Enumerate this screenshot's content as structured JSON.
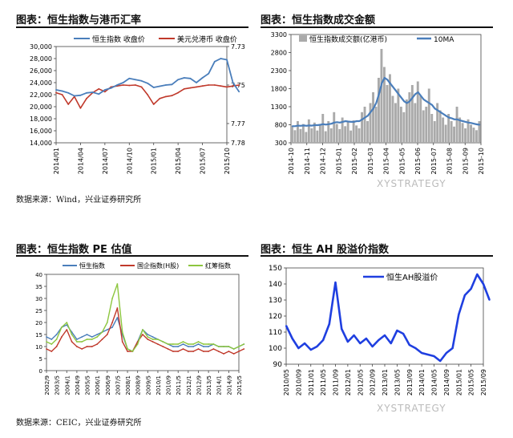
{
  "panels": {
    "p1": {
      "title": "图表：恒生指数与港币汇率"
    },
    "p2": {
      "title": "图表：恒生指数成交金额"
    },
    "p3": {
      "title": "图表：恒生指数 PE 估值"
    },
    "p4": {
      "title": "图表：恒生 AH 股溢价指数"
    }
  },
  "sources": {
    "top": "数据来源：Wind，兴业证券研究所",
    "bottom": "数据来源：CEIC，兴业证券研究所"
  },
  "watermark": "XYSTRATEGY",
  "chart_data": [
    {
      "id": "p1",
      "type": "line",
      "title": "",
      "x_ticks": [
        "2014/01",
        "2014/04",
        "2014/07",
        "2014/10",
        "2015/01",
        "2015/04",
        "2015/07",
        "2015/10"
      ],
      "x": [
        0,
        0.25,
        0.5,
        0.75,
        1,
        1.25,
        1.5,
        1.75,
        2,
        2.25,
        2.5,
        2.75,
        3,
        3.25,
        3.5,
        3.75,
        4,
        4.25,
        4.5,
        4.75,
        5,
        5.25,
        5.5,
        5.75,
        6,
        6.25,
        6.5,
        6.75,
        7,
        7.25,
        7.5
      ],
      "ylim_left": [
        14000,
        30000
      ],
      "y_ticks_left": [
        "14,000",
        "16,000",
        "18,000",
        "20,000",
        "22,000",
        "24,000",
        "26,000",
        "28,000",
        "30,000"
      ],
      "ylim_right": [
        7.78,
        7.73
      ],
      "y_ticks_right": [
        "7.73",
        "7.75",
        "7.77",
        "7.78"
      ],
      "series": [
        {
          "name": "恒生指数 收盘价",
          "axis": "left",
          "color": "#4a7ebb",
          "values": [
            22800,
            22600,
            22300,
            21800,
            21900,
            22300,
            22400,
            22100,
            22800,
            23100,
            23600,
            24000,
            24700,
            24500,
            24300,
            23900,
            23200,
            23400,
            23600,
            23700,
            24500,
            24800,
            24700,
            24000,
            24800,
            25500,
            27500,
            28000,
            27800,
            24000,
            22500
          ]
        },
        {
          "name": "美元兑港币 收盘价",
          "axis": "right",
          "color": "#c0392b",
          "values": [
            7.754,
            7.755,
            7.76,
            7.756,
            7.762,
            7.757,
            7.754,
            7.752,
            7.7535,
            7.751,
            7.7505,
            7.75,
            7.7502,
            7.75,
            7.751,
            7.755,
            7.76,
            7.757,
            7.756,
            7.7555,
            7.754,
            7.752,
            7.7515,
            7.751,
            7.7505,
            7.75,
            7.75,
            7.7505,
            7.751,
            7.7505,
            7.75
          ]
        }
      ]
    },
    {
      "id": "p2",
      "type": "bar",
      "title": "",
      "x_ticks": [
        "2014-10",
        "2014-11",
        "2014-12",
        "2015-01",
        "2015-02",
        "2015-03",
        "2015-04",
        "2015-05",
        "2015-06",
        "2015-07",
        "2015-08",
        "2015-09",
        "2015-10"
      ],
      "ylim": [
        300,
        3300
      ],
      "y_ticks": [
        "300",
        "800",
        "1300",
        "1800",
        "2300",
        "2800",
        "3300"
      ],
      "series": [
        {
          "name": "恒生指数成交额(亿港币)",
          "color": "#aaaaaa",
          "values": [
            750,
            650,
            900,
            680,
            820,
            600,
            950,
            700,
            860,
            640,
            780,
            1100,
            620,
            900,
            700,
            1150,
            820,
            680,
            1000,
            760,
            880,
            640,
            920,
            780,
            700,
            1150,
            1300,
            900,
            1400,
            1700,
            1300,
            2100,
            2900,
            2400,
            1900,
            2200,
            1600,
            1400,
            1800,
            1300,
            1150,
            1500,
            1700,
            1900,
            1400,
            2000,
            1600,
            1200,
            1300,
            1800,
            1100,
            900,
            1400,
            1200,
            1000,
            800,
            1100,
            900,
            750,
            1300,
            1000,
            850,
            700,
            950,
            800,
            720,
            650,
            900
          ]
        },
        {
          "name": "10MA",
          "color": "#4a7ebb",
          "values": [
            760,
            760,
            775,
            770,
            780,
            770,
            780,
            775,
            790,
            790,
            800,
            815,
            805,
            815,
            830,
            860,
            870,
            860,
            880,
            900,
            890,
            880,
            880,
            900,
            900,
            950,
            1000,
            1050,
            1150,
            1250,
            1400,
            1650,
            1950,
            2100,
            2050,
            1950,
            1850,
            1750,
            1650,
            1550,
            1450,
            1400,
            1450,
            1550,
            1650,
            1700,
            1600,
            1500,
            1450,
            1400,
            1350,
            1250,
            1200,
            1150,
            1100,
            1050,
            1000,
            980,
            950,
            950,
            920,
            900,
            880,
            860,
            850,
            830,
            810,
            800
          ]
        }
      ]
    },
    {
      "id": "p3",
      "type": "line",
      "title": "",
      "x_ticks": [
        "2002/9",
        "2003/5",
        "2004/1",
        "2004/9",
        "2005/5",
        "2006/1",
        "2006/9",
        "2007/5",
        "2008/1",
        "2008/9",
        "2009/5",
        "2010/1",
        "2010/9",
        "2011/5",
        "2012/1",
        "2012/9",
        "2013/5",
        "2014/1",
        "2014/9",
        "2015/5"
      ],
      "x": [
        0,
        0.5,
        1,
        1.5,
        2,
        2.5,
        3,
        3.5,
        4,
        4.5,
        5,
        5.5,
        6,
        6.5,
        7,
        7.5,
        8,
        8.5,
        9,
        9.5,
        10,
        10.5,
        11,
        11.5,
        12,
        12.5,
        13,
        13.5,
        14,
        14.5,
        15,
        15.5,
        16,
        16.5,
        17,
        17.5,
        18,
        18.5,
        19,
        19.5
      ],
      "ylim": [
        0,
        40
      ],
      "y_ticks": [
        "0",
        "5",
        "10",
        "15",
        "20",
        "25",
        "30",
        "35",
        "40"
      ],
      "series": [
        {
          "name": "恒生指数",
          "color": "#4a7ebb",
          "values": [
            14,
            13,
            15,
            18,
            19,
            16,
            13,
            14,
            15,
            14,
            15,
            16,
            17,
            18,
            22,
            15,
            9,
            8,
            12,
            17,
            15,
            14,
            13,
            12,
            11,
            10,
            10,
            11,
            10,
            10,
            11,
            10,
            10,
            11,
            10,
            10,
            10,
            9,
            10,
            11
          ]
        },
        {
          "name": "国企指数(H股)",
          "color": "#c0392b",
          "values": [
            9,
            8,
            10,
            14,
            17,
            12,
            10,
            9,
            10,
            10,
            11,
            13,
            15,
            20,
            26,
            12,
            8,
            8,
            12,
            15,
            13,
            12,
            11,
            10,
            9,
            8,
            8,
            9,
            8,
            8,
            9,
            8,
            8,
            9,
            8,
            7,
            8,
            7,
            8,
            9
          ]
        },
        {
          "name": "红筹指数",
          "color": "#8dc63f",
          "values": [
            12,
            11,
            13,
            18,
            20,
            15,
            12,
            12,
            13,
            13,
            14,
            16,
            20,
            30,
            36,
            16,
            9,
            8,
            11,
            17,
            14,
            13,
            13,
            12,
            11,
            11,
            11,
            12,
            11,
            11,
            12,
            11,
            11,
            11,
            10,
            10,
            10,
            9,
            10,
            11
          ]
        }
      ]
    },
    {
      "id": "p4",
      "type": "line",
      "title": "",
      "x_ticks": [
        "2010/05",
        "2010/09",
        "2011/01",
        "2011/05",
        "2011/09",
        "2012/01",
        "2012/05",
        "2012/09",
        "2013/01",
        "2013/05",
        "2013/09",
        "2014/01",
        "2014/05",
        "2014/09",
        "2015/01",
        "2015/05",
        "2015/09"
      ],
      "x": [
        0,
        0.5,
        1,
        1.5,
        2,
        2.5,
        3,
        3.5,
        4,
        4.5,
        5,
        5.5,
        6,
        6.5,
        7,
        7.5,
        8,
        8.5,
        9,
        9.5,
        10,
        10.5,
        11,
        11.5,
        12,
        12.5,
        13,
        13.5,
        14,
        14.5,
        15,
        15.5,
        16,
        16.5
      ],
      "ylim": [
        90,
        150
      ],
      "y_ticks": [
        "90",
        "100",
        "110",
        "120",
        "130",
        "140",
        "150"
      ],
      "series": [
        {
          "name": "恒生AH股溢价",
          "color": "#1f3fe0",
          "values": [
            114,
            106,
            100,
            103,
            99,
            101,
            105,
            115,
            141,
            112,
            104,
            108,
            103,
            106,
            101,
            105,
            108,
            103,
            111,
            109,
            102,
            100,
            97,
            96,
            95,
            92,
            97,
            100,
            121,
            133,
            137,
            146,
            140,
            130
          ]
        }
      ]
    }
  ]
}
